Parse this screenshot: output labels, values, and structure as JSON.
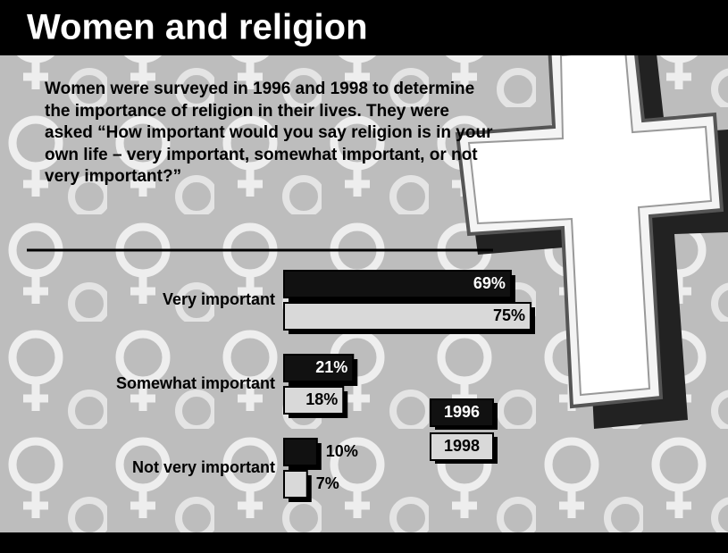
{
  "chart_data": {
    "type": "hbar",
    "title": "Women and religion",
    "subtitle": "Women were surveyed in 1996 and 1998 to determine the importance of religion in their lives. They were asked “How important would you say religion is in your own life – very important, somewhat important, or not very important?”",
    "categories": [
      "Very important",
      "Somewhat important",
      "Not very important"
    ],
    "series": [
      {
        "name": "1996",
        "color": "#111111",
        "values": [
          69,
          21,
          10
        ],
        "value_labels": [
          "69%",
          "21%",
          "10%"
        ]
      },
      {
        "name": "1998",
        "color": "#d9d9d9",
        "values": [
          75,
          18,
          7
        ],
        "value_labels": [
          "75%",
          "18%",
          "7%"
        ]
      }
    ]
  }
}
